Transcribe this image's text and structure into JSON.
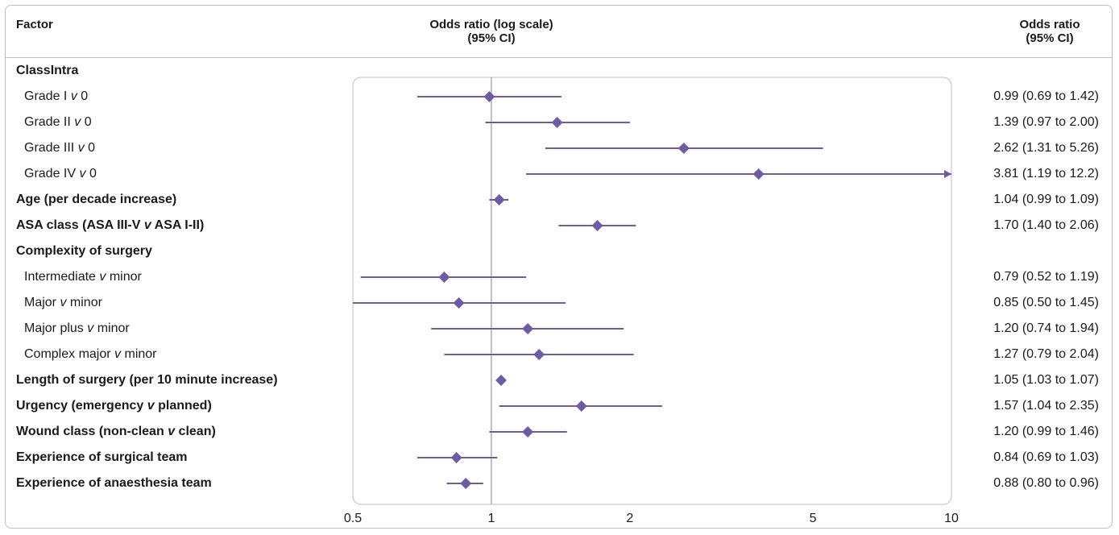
{
  "header": {
    "factor": "Factor",
    "plot_line1": "Odds ratio (log scale)",
    "plot_line2": "(95% CI)",
    "or_line1": "Odds ratio",
    "or_line2": "(95% CI)"
  },
  "colors": {
    "marker": "#6b5ca5",
    "line": "#6b5ca5",
    "ref_line": "#9a9a9a",
    "border": "#bfbfbf"
  },
  "chart_data": {
    "type": "forest",
    "xlabel": "",
    "x_scale": "log",
    "xlim": [
      0.5,
      10
    ],
    "x_ticks": [
      0.5,
      1,
      2,
      5,
      10
    ],
    "x_tick_labels": [
      "0.5",
      "1",
      "2",
      "5",
      "10"
    ],
    "reference_line": 1,
    "rows": [
      {
        "label": "ClassIntra",
        "bold": true,
        "indent": false,
        "or": null,
        "lo": null,
        "hi": null,
        "text": ""
      },
      {
        "label": "Grade I v 0",
        "bold": false,
        "indent": true,
        "or": 0.99,
        "lo": 0.69,
        "hi": 1.42,
        "text": "0.99 (0.69 to 1.42)"
      },
      {
        "label": "Grade II v 0",
        "bold": false,
        "indent": true,
        "or": 1.39,
        "lo": 0.97,
        "hi": 2.0,
        "text": "1.39 (0.97 to 2.00)"
      },
      {
        "label": "Grade III v 0",
        "bold": false,
        "indent": true,
        "or": 2.62,
        "lo": 1.31,
        "hi": 5.26,
        "text": "2.62 (1.31 to 5.26)"
      },
      {
        "label": "Grade IV v 0",
        "bold": false,
        "indent": true,
        "or": 3.81,
        "lo": 1.19,
        "hi": 12.2,
        "text": "3.81 (1.19 to 12.2)"
      },
      {
        "label": "Age (per decade increase)",
        "bold": true,
        "indent": false,
        "or": 1.04,
        "lo": 0.99,
        "hi": 1.09,
        "text": "1.04 (0.99 to 1.09)"
      },
      {
        "label": "ASA class (ASA III-V v ASA I-II)",
        "bold": true,
        "indent": false,
        "or": 1.7,
        "lo": 1.4,
        "hi": 2.06,
        "text": "1.70 (1.40 to 2.06)"
      },
      {
        "label": "Complexity of surgery",
        "bold": true,
        "indent": false,
        "or": null,
        "lo": null,
        "hi": null,
        "text": ""
      },
      {
        "label": "Intermediate v minor",
        "bold": false,
        "indent": true,
        "or": 0.79,
        "lo": 0.52,
        "hi": 1.19,
        "text": "0.79 (0.52 to 1.19)"
      },
      {
        "label": "Major v minor",
        "bold": false,
        "indent": true,
        "or": 0.85,
        "lo": 0.5,
        "hi": 1.45,
        "text": "0.85 (0.50 to 1.45)"
      },
      {
        "label": "Major plus v minor",
        "bold": false,
        "indent": true,
        "or": 1.2,
        "lo": 0.74,
        "hi": 1.94,
        "text": "1.20 (0.74 to 1.94)"
      },
      {
        "label": "Complex major v minor",
        "bold": false,
        "indent": true,
        "or": 1.27,
        "lo": 0.79,
        "hi": 2.04,
        "text": "1.27 (0.79 to 2.04)"
      },
      {
        "label": "Length of surgery (per 10 minute increase)",
        "bold": true,
        "indent": false,
        "or": 1.05,
        "lo": 1.03,
        "hi": 1.07,
        "text": "1.05 (1.03 to 1.07)"
      },
      {
        "label": "Urgency (emergency v planned)",
        "bold": true,
        "indent": false,
        "or": 1.57,
        "lo": 1.04,
        "hi": 2.35,
        "text": "1.57 (1.04 to 2.35)"
      },
      {
        "label": "Wound class (non-clean v clean)",
        "bold": true,
        "indent": false,
        "or": 1.2,
        "lo": 0.99,
        "hi": 1.46,
        "text": "1.20 (0.99 to 1.46)"
      },
      {
        "label": "Experience of surgical team",
        "bold": true,
        "indent": false,
        "or": 0.84,
        "lo": 0.69,
        "hi": 1.03,
        "text": "0.84 (0.69 to 1.03)"
      },
      {
        "label": "Experience of anaesthesia team",
        "bold": true,
        "indent": false,
        "or": 0.88,
        "lo": 0.8,
        "hi": 0.96,
        "text": "0.88 (0.80 to 0.96)"
      }
    ]
  }
}
